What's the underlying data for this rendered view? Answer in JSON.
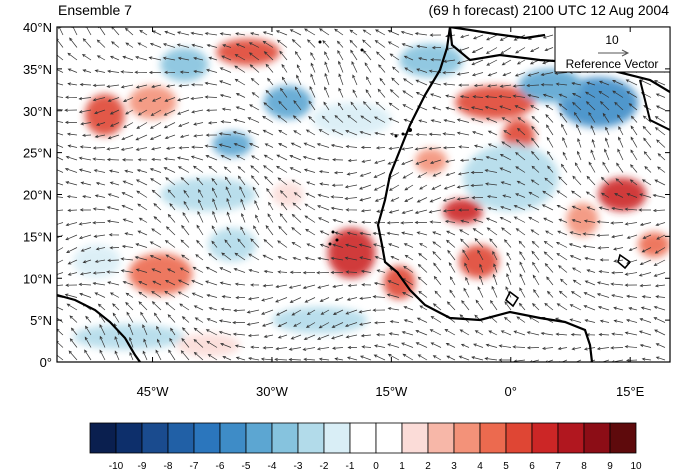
{
  "title_left": "Ensemble 7",
  "title_right": "(69 h forecast) 2100 UTC 12 Aug 2004",
  "reference_vector": {
    "magnitude": "10",
    "label": "Reference Vector"
  },
  "map": {
    "lon_range": [
      -57,
      20
    ],
    "lat_range": [
      0,
      40
    ],
    "lat_ticks": [
      {
        "value": 40,
        "label": "40°N"
      },
      {
        "value": 35,
        "label": "35°N"
      },
      {
        "value": 30,
        "label": "30°N"
      },
      {
        "value": 25,
        "label": "25°N"
      },
      {
        "value": 20,
        "label": "20°N"
      },
      {
        "value": 15,
        "label": "15°N"
      },
      {
        "value": 10,
        "label": "10°N"
      },
      {
        "value": 5,
        "label": "5°N"
      },
      {
        "value": 0,
        "label": "0°"
      }
    ],
    "lon_ticks": [
      {
        "value": -45,
        "label": "45°W"
      },
      {
        "value": -30,
        "label": "30°W"
      },
      {
        "value": -15,
        "label": "15°W"
      },
      {
        "value": 0,
        "label": "0°"
      },
      {
        "value": 15,
        "label": "15°E"
      }
    ],
    "colorbar": {
      "labels": [
        "-10",
        "-9",
        "-8",
        "-7",
        "-6",
        "-5",
        "-4",
        "-3",
        "-2",
        "-1",
        "0",
        "1",
        "2",
        "3",
        "4",
        "5",
        "6",
        "7",
        "8",
        "9",
        "10"
      ],
      "colors": [
        "#0a1f4f",
        "#0d2f6b",
        "#1a4b8e",
        "#2160a6",
        "#2b76bd",
        "#3e8cc7",
        "#5ca6d2",
        "#86c3de",
        "#b2dbea",
        "#d9eef6",
        "#ffffff",
        "#ffffff",
        "#fbdcd8",
        "#f7b7a8",
        "#f39279",
        "#ec6a4f",
        "#df4634",
        "#cc2626",
        "#b1171f",
        "#8c0d16",
        "#5e0a0c"
      ]
    },
    "color_blobs": [
      {
        "lon": -51,
        "lat": 29.5,
        "rx": 2.5,
        "ry": 2.5,
        "color": "#df4634"
      },
      {
        "lon": -45,
        "lat": 31,
        "rx": 3,
        "ry": 2,
        "color": "#f39279"
      },
      {
        "lon": -33,
        "lat": 37,
        "rx": 4,
        "ry": 1.6,
        "color": "#df4634"
      },
      {
        "lon": -41,
        "lat": 35.5,
        "rx": 3,
        "ry": 2,
        "color": "#86c3de"
      },
      {
        "lon": -28,
        "lat": 31,
        "rx": 3,
        "ry": 2,
        "color": "#5ca6d2"
      },
      {
        "lon": -35,
        "lat": 26,
        "rx": 2.5,
        "ry": 1.5,
        "color": "#5ca6d2"
      },
      {
        "lon": -44,
        "lat": 10.5,
        "rx": 4,
        "ry": 2.5,
        "color": "#ec6a4f"
      },
      {
        "lon": -20,
        "lat": 13,
        "rx": 3,
        "ry": 3,
        "color": "#cc2626"
      },
      {
        "lon": -14,
        "lat": 9.5,
        "rx": 2,
        "ry": 2,
        "color": "#df4634"
      },
      {
        "lon": -4,
        "lat": 12,
        "rx": 2.5,
        "ry": 2,
        "color": "#df4634"
      },
      {
        "lon": -6,
        "lat": 18,
        "rx": 2.5,
        "ry": 1.5,
        "color": "#cc2626"
      },
      {
        "lon": 1,
        "lat": 27,
        "rx": 2,
        "ry": 2,
        "color": "#df4634"
      },
      {
        "lon": -2,
        "lat": 31,
        "rx": 5,
        "ry": 2,
        "color": "#df4634"
      },
      {
        "lon": 11,
        "lat": 31,
        "rx": 5,
        "ry": 3,
        "color": "#3e8cc7"
      },
      {
        "lon": 5,
        "lat": 33,
        "rx": 4,
        "ry": 2,
        "color": "#5ca6d2"
      },
      {
        "lon": 14,
        "lat": 20,
        "rx": 3,
        "ry": 2,
        "color": "#cc2626"
      },
      {
        "lon": 9,
        "lat": 17,
        "rx": 2,
        "ry": 2,
        "color": "#f39279"
      },
      {
        "lon": 18,
        "lat": 14,
        "rx": 2,
        "ry": 1.5,
        "color": "#ec6a4f"
      },
      {
        "lon": -10,
        "lat": 24,
        "rx": 2,
        "ry": 1.5,
        "color": "#f39279"
      },
      {
        "lon": -38,
        "lat": 20,
        "rx": 6,
        "ry": 2,
        "color": "#b2dbea"
      },
      {
        "lon": -48,
        "lat": 3,
        "rx": 7,
        "ry": 1.5,
        "color": "#b2dbea"
      },
      {
        "lon": -24,
        "lat": 5,
        "rx": 6,
        "ry": 1.6,
        "color": "#b2dbea"
      },
      {
        "lon": -35,
        "lat": 14,
        "rx": 3,
        "ry": 2,
        "color": "#b2dbea"
      },
      {
        "lon": -28,
        "lat": 20,
        "rx": 2,
        "ry": 1.5,
        "color": "#fbdcd8"
      },
      {
        "lon": -10,
        "lat": 36,
        "rx": 4,
        "ry": 2,
        "color": "#86c3de"
      },
      {
        "lon": 0,
        "lat": 22,
        "rx": 6,
        "ry": 4,
        "color": "#b2dbea"
      },
      {
        "lon": -20,
        "lat": 29,
        "rx": 5,
        "ry": 2,
        "color": "#d9eef6"
      },
      {
        "lon": -52,
        "lat": 12,
        "rx": 3,
        "ry": 2,
        "color": "#d9eef6"
      },
      {
        "lon": -38,
        "lat": 2,
        "rx": 4,
        "ry": 1.4,
        "color": "#fbdcd8"
      }
    ]
  }
}
